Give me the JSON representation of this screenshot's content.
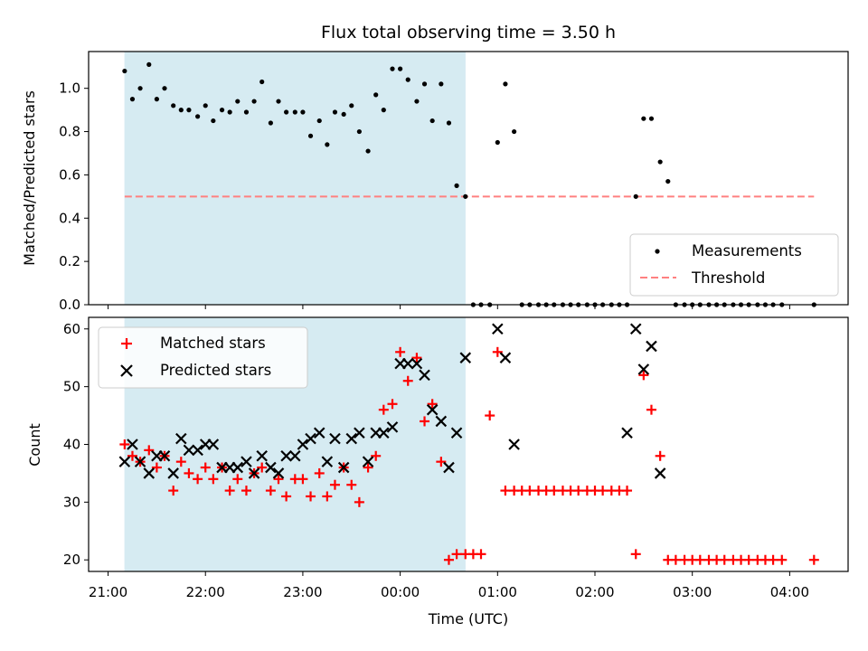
{
  "title": "Flux total observing time = 3.50 h",
  "chart_data": [
    {
      "type": "scatter",
      "ylabel": "Matched/Predicted stars",
      "ylim": [
        0,
        1.17
      ],
      "yticks": [
        0.0,
        0.2,
        0.4,
        0.6,
        0.8,
        1.0
      ],
      "ytick_labels": [
        "0.0",
        "0.2",
        "0.4",
        "0.6",
        "0.8",
        "1.0"
      ],
      "legend_position": "bottom-right",
      "threshold": {
        "name": "Threshold",
        "value": 0.5,
        "x_start": 21.17,
        "x_end": 28.25,
        "color": "#ff8080"
      },
      "series": [
        {
          "name": "Measurements",
          "color": "#000000",
          "marker": "dot",
          "x": [
            21.17,
            21.25,
            21.33,
            21.42,
            21.5,
            21.58,
            21.67,
            21.75,
            21.83,
            21.92,
            22.0,
            22.08,
            22.17,
            22.25,
            22.33,
            22.42,
            22.5,
            22.58,
            22.67,
            22.75,
            22.83,
            22.92,
            23.0,
            23.08,
            23.17,
            23.25,
            23.33,
            23.42,
            23.5,
            23.58,
            23.67,
            23.75,
            23.83,
            23.92,
            24.0,
            24.08,
            24.17,
            24.25,
            24.33,
            24.42,
            24.5,
            24.58,
            24.67,
            24.75,
            24.83,
            24.92,
            25.0,
            25.08,
            25.17,
            25.25,
            25.33,
            25.42,
            25.5,
            25.58,
            25.67,
            25.75,
            25.83,
            25.92,
            26.0,
            26.08,
            26.17,
            26.25,
            26.33,
            26.42,
            26.5,
            26.58,
            26.67,
            26.75,
            26.83,
            26.92,
            27.0,
            27.08,
            27.17,
            27.25,
            27.33,
            27.42,
            27.5,
            27.58,
            27.67,
            27.75,
            27.83,
            27.92,
            28.25
          ],
          "y": [
            1.08,
            0.95,
            1.0,
            1.11,
            0.95,
            1.0,
            0.92,
            0.9,
            0.9,
            0.87,
            0.92,
            0.85,
            0.9,
            0.89,
            0.94,
            0.89,
            0.94,
            1.03,
            0.84,
            0.94,
            0.89,
            0.89,
            0.89,
            0.78,
            0.85,
            0.74,
            0.89,
            0.88,
            0.92,
            0.8,
            0.71,
            0.97,
            0.9,
            1.09,
            1.09,
            1.04,
            0.94,
            1.02,
            0.85,
            1.02,
            0.84,
            0.55,
            0.5,
            0.0,
            0.0,
            0.0,
            0.75,
            1.02,
            0.8,
            0.0,
            0.0,
            0.0,
            0.0,
            0.0,
            0.0,
            0.0,
            0.0,
            0.0,
            0.0,
            0.0,
            0.0,
            0.0,
            0.0,
            0.5,
            0.86,
            0.86,
            0.66,
            0.57,
            0.0,
            0.0,
            0.0,
            0.0,
            0.0,
            0.0,
            0.0,
            0.0,
            0.0,
            0.0,
            0.0,
            0.0,
            0.0,
            0.0,
            0.0
          ]
        }
      ]
    },
    {
      "type": "scatter",
      "ylabel": "Count",
      "xlabel": "Time (UTC)",
      "ylim": [
        18,
        62
      ],
      "yticks": [
        20,
        30,
        40,
        50,
        60
      ],
      "ytick_labels": [
        "20",
        "30",
        "40",
        "50",
        "60"
      ],
      "xticks": [
        21,
        22,
        23,
        24,
        25,
        26,
        27,
        28
      ],
      "xtick_labels": [
        "21:00",
        "22:00",
        "23:00",
        "00:00",
        "01:00",
        "02:00",
        "03:00",
        "04:00"
      ],
      "legend_position": "top-left",
      "series": [
        {
          "name": "Matched stars",
          "color": "#ff0000",
          "marker": "plus",
          "x": [
            21.17,
            21.25,
            21.33,
            21.42,
            21.5,
            21.58,
            21.67,
            21.75,
            21.83,
            21.92,
            22.0,
            22.08,
            22.17,
            22.25,
            22.33,
            22.42,
            22.5,
            22.58,
            22.67,
            22.75,
            22.83,
            22.92,
            23.0,
            23.08,
            23.17,
            23.25,
            23.33,
            23.42,
            23.5,
            23.58,
            23.67,
            23.75,
            23.83,
            23.92,
            24.0,
            24.08,
            24.17,
            24.25,
            24.33,
            24.42,
            24.5,
            24.58,
            24.67,
            24.75,
            24.83,
            24.92,
            25.0,
            25.08,
            25.17,
            25.25,
            25.33,
            25.42,
            25.5,
            25.58,
            25.67,
            25.75,
            25.83,
            25.92,
            26.0,
            26.08,
            26.17,
            26.25,
            26.33,
            26.42,
            26.5,
            26.58,
            26.67,
            26.75,
            26.83,
            26.92,
            27.0,
            27.08,
            27.17,
            27.25,
            27.33,
            27.42,
            27.5,
            27.58,
            27.67,
            27.75,
            27.83,
            27.92,
            28.25
          ],
          "y": [
            40,
            38,
            37,
            39,
            36,
            38,
            32,
            37,
            35,
            34,
            36,
            34,
            36,
            32,
            34,
            32,
            35,
            36,
            32,
            34,
            31,
            34,
            34,
            31,
            35,
            31,
            33,
            36,
            33,
            30,
            36,
            38,
            46,
            47,
            56,
            51,
            55,
            44,
            47,
            37,
            20,
            21,
            21,
            21,
            21,
            45,
            56,
            32,
            32,
            32,
            32,
            32,
            32,
            32,
            32,
            32,
            32,
            32,
            32,
            32,
            32,
            32,
            32,
            21,
            52,
            46,
            38,
            20,
            20,
            20,
            20,
            20,
            20,
            20,
            20,
            20,
            20,
            20,
            20,
            20,
            20,
            20,
            20
          ]
        },
        {
          "name": "Predicted stars",
          "color": "#000000",
          "marker": "x",
          "x": [
            21.17,
            21.25,
            21.33,
            21.42,
            21.5,
            21.58,
            21.67,
            21.75,
            21.83,
            21.92,
            22.0,
            22.08,
            22.17,
            22.25,
            22.33,
            22.42,
            22.5,
            22.58,
            22.67,
            22.75,
            22.83,
            22.92,
            23.0,
            23.08,
            23.17,
            23.25,
            23.33,
            23.42,
            23.5,
            23.58,
            23.67,
            23.75,
            23.83,
            23.92,
            24.0,
            24.08,
            24.17,
            24.25,
            24.33,
            24.42,
            24.5,
            24.58,
            24.67,
            25.0,
            25.08,
            25.17,
            26.33,
            26.42,
            26.5,
            26.58,
            26.67
          ],
          "y": [
            37,
            40,
            37,
            35,
            38,
            38,
            35,
            41,
            39,
            39,
            40,
            40,
            36,
            36,
            36,
            37,
            35,
            38,
            36,
            35,
            38,
            38,
            40,
            41,
            42,
            37,
            41,
            36,
            41,
            42,
            37,
            42,
            42,
            43,
            54,
            54,
            54,
            52,
            46,
            44,
            36,
            42,
            55,
            60,
            55,
            40,
            42,
            60,
            53,
            57,
            35
          ]
        }
      ]
    }
  ]
}
